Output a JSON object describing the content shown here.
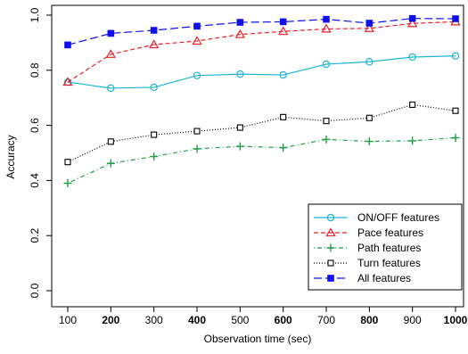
{
  "chart_data": {
    "type": "line",
    "title": "",
    "xlabel": "Observation time (sec)",
    "ylabel": "Accuracy",
    "x": [
      100,
      200,
      300,
      400,
      500,
      600,
      700,
      800,
      900,
      1000
    ],
    "x_tick_labels": [
      "100",
      "200",
      "300",
      "400",
      "500",
      "600",
      "700",
      "800",
      "900",
      "1000"
    ],
    "x_tick_bold": [
      false,
      true,
      false,
      true,
      false,
      true,
      false,
      true,
      false,
      true
    ],
    "xlim": [
      100,
      1000
    ],
    "ylim": [
      0.0,
      1.0
    ],
    "y_ticks": [
      0.0,
      0.2,
      0.4,
      0.6,
      0.8,
      1.0
    ],
    "y_tick_labels": [
      "0.0",
      "0.2",
      "0.4",
      "0.6",
      "0.8",
      "1.0"
    ],
    "grid": false,
    "legend_position": "bottom-right",
    "series": [
      {
        "name": "ON/OFF features",
        "values": [
          0.757,
          0.735,
          0.738,
          0.781,
          0.786,
          0.783,
          0.822,
          0.831,
          0.848,
          0.852
        ],
        "color": "#1EB4D4",
        "line_style": "solid",
        "marker": "circle"
      },
      {
        "name": "Pace features",
        "values": [
          0.757,
          0.858,
          0.893,
          0.906,
          0.93,
          0.941,
          0.95,
          0.952,
          0.97,
          0.976
        ],
        "color": "#E8222A",
        "line_style": "dashed",
        "marker": "triangle"
      },
      {
        "name": "Path features",
        "values": [
          0.39,
          0.462,
          0.487,
          0.515,
          0.524,
          0.519,
          0.549,
          0.542,
          0.544,
          0.555
        ],
        "color": "#1FA046",
        "line_style": "dashdot",
        "marker": "plus"
      },
      {
        "name": "Turn features",
        "values": [
          0.467,
          0.541,
          0.566,
          0.579,
          0.592,
          0.63,
          0.616,
          0.627,
          0.675,
          0.653
        ],
        "color": "#000000",
        "line_style": "dotted",
        "marker": "square-open"
      },
      {
        "name": "All features",
        "values": [
          0.892,
          0.934,
          0.945,
          0.96,
          0.974,
          0.976,
          0.985,
          0.971,
          0.988,
          0.987
        ],
        "color": "#1010EE",
        "line_style": "longdash",
        "marker": "square-filled"
      }
    ]
  }
}
